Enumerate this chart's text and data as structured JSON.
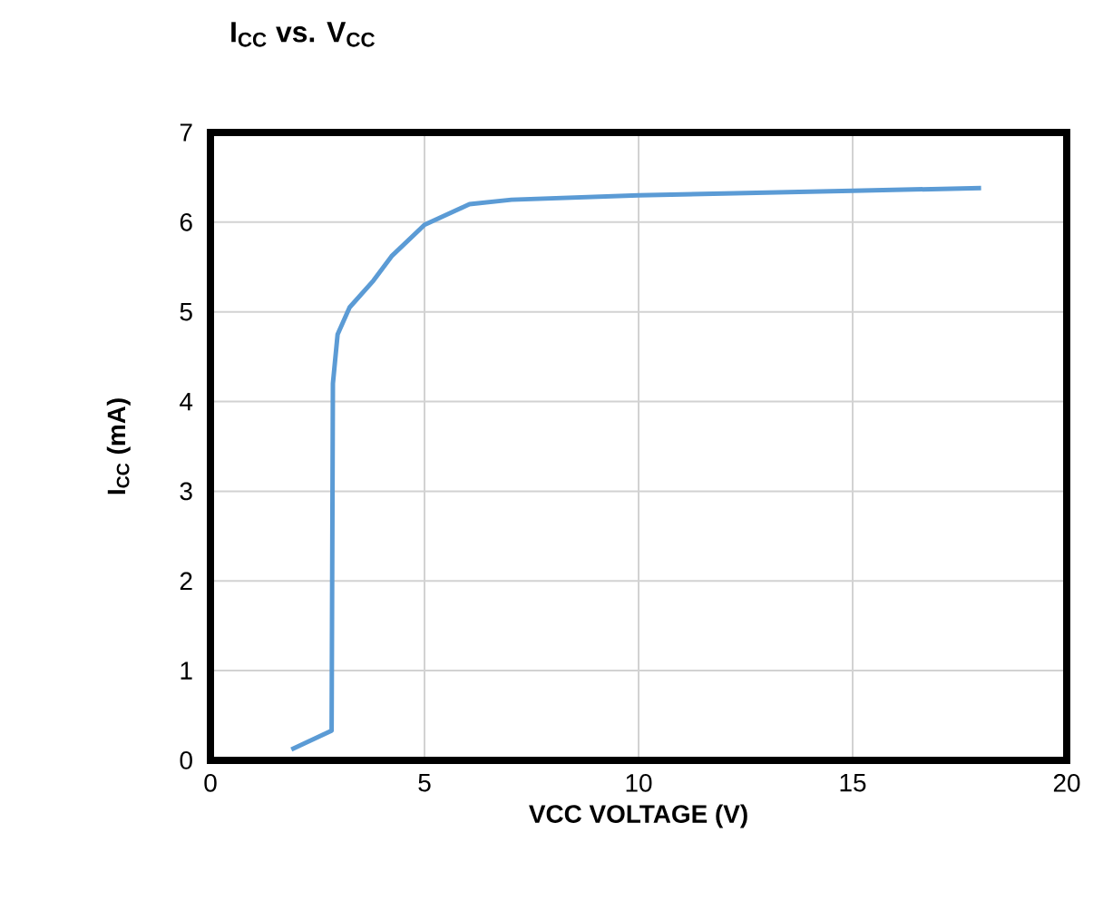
{
  "chart_data": {
    "type": "line",
    "title": "I$_{CC}$ vs. V$_{CC}$",
    "xlabel": "VCC VOLTAGE (V)",
    "ylabel": "I$_{CC}$ (mA)",
    "x": [
      1.89,
      2.83,
      2.86,
      2.97,
      3.25,
      3.81,
      4.23,
      5.0,
      6.05,
      7.03,
      10,
      12,
      15,
      18
    ],
    "series": [
      {
        "color": "#5b9bd5",
        "values": [
          0.12,
          0.33,
          4.2,
          4.75,
          5.05,
          5.35,
          5.62,
          5.97,
          6.2,
          6.25,
          6.3,
          6.32,
          6.35,
          6.38
        ]
      }
    ],
    "xlim": [
      0,
      20
    ],
    "ylim": [
      0,
      7
    ],
    "xticks": [
      0,
      5,
      10,
      15,
      20
    ],
    "yticks": [
      0,
      1,
      2,
      3,
      4,
      5,
      6,
      7
    ],
    "grid": true,
    "marker": "none",
    "line_style": "solid"
  }
}
